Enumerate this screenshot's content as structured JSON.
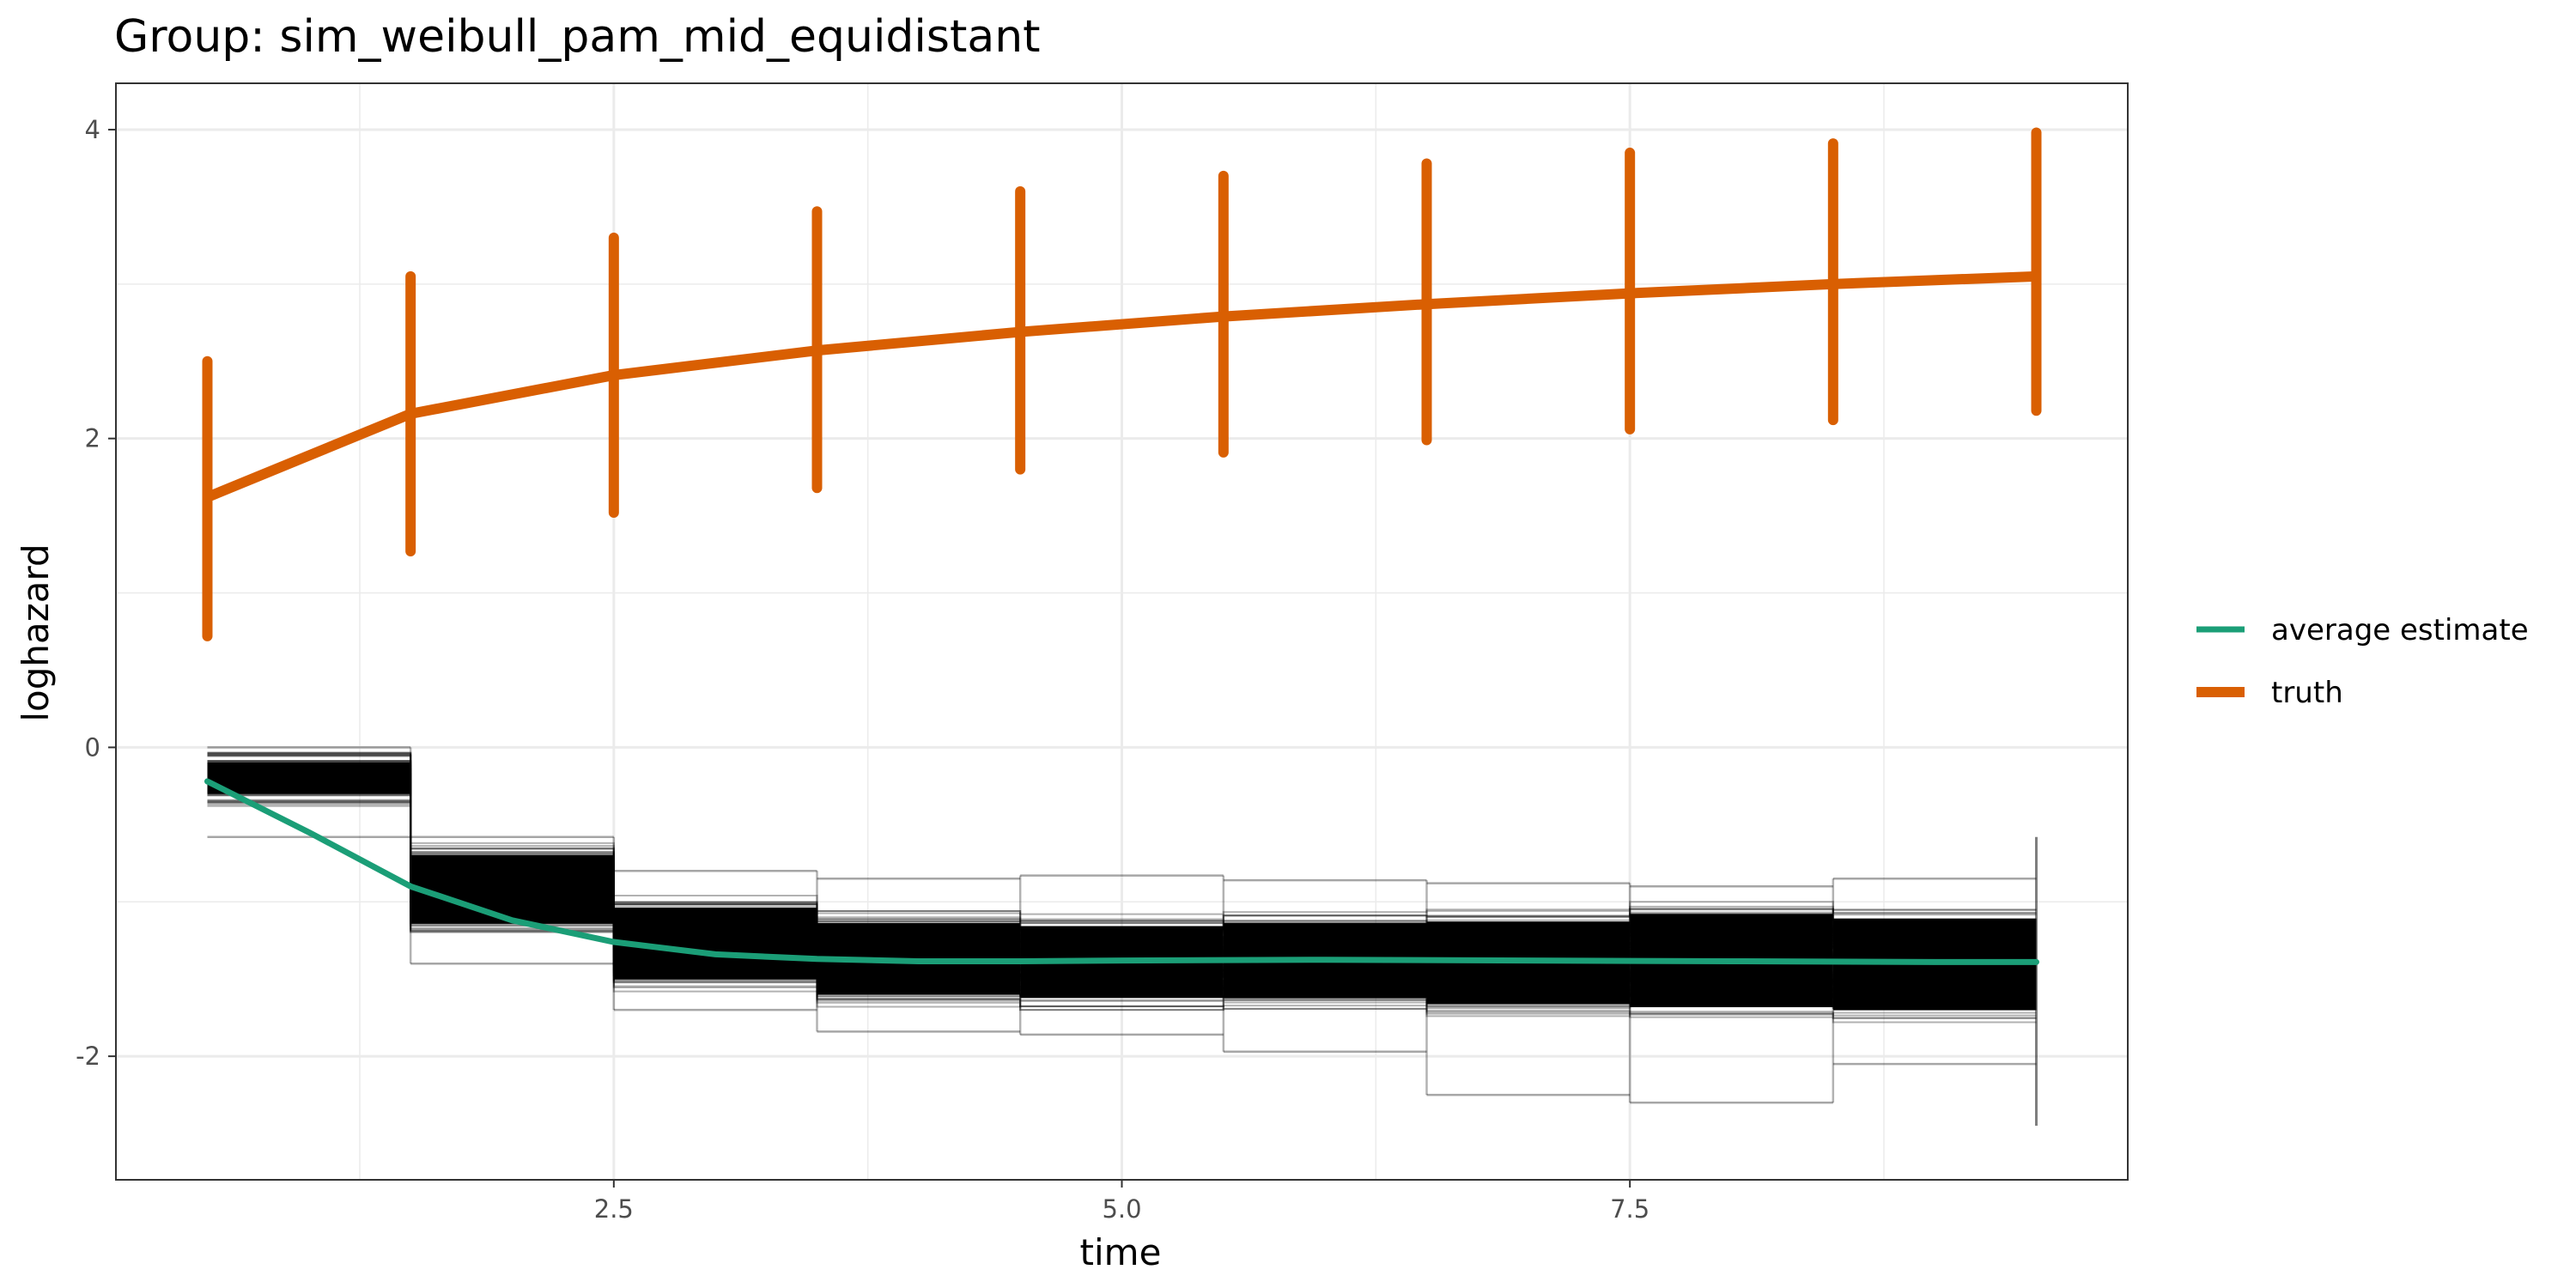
{
  "chart_data": {
    "type": "line",
    "title": "Group: sim_weibull_pam_mid_equidistant",
    "xlabel": "time",
    "ylabel": "loghazard",
    "xlim": [
      0.05,
      9.95
    ],
    "ylim": [
      -2.8,
      4.3
    ],
    "x_ticks": [
      2.5,
      5.0,
      7.5
    ],
    "x_tick_labels": [
      "2.5",
      "5.0",
      "7.5"
    ],
    "y_ticks": [
      -2,
      0,
      2,
      4
    ],
    "y_tick_labels": [
      "-2",
      "0",
      "2",
      "4"
    ],
    "grid": true,
    "legend_position": "right",
    "series": [
      {
        "name": "average estimate",
        "color": "#1b9e77",
        "x": [
          0.5,
          1.0,
          1.5,
          2.0,
          2.5,
          3.0,
          3.5,
          4.0,
          4.5,
          5.0,
          6.0,
          7.0,
          8.0,
          9.0,
          9.5
        ],
        "y": [
          -0.22,
          -0.55,
          -0.9,
          -1.12,
          -1.26,
          -1.34,
          -1.37,
          -1.385,
          -1.385,
          -1.38,
          -1.375,
          -1.38,
          -1.385,
          -1.39,
          -1.39
        ]
      },
      {
        "name": "truth",
        "color": "#d95f02",
        "x": [
          0.5,
          1.5,
          2.5,
          3.5,
          4.5,
          5.5,
          6.5,
          7.5,
          8.5,
          9.5
        ],
        "y": [
          1.62,
          2.16,
          2.41,
          2.57,
          2.69,
          2.79,
          2.87,
          2.94,
          3.0,
          3.05
        ],
        "vertical_ranges": [
          [
            0.72,
            2.5
          ],
          [
            1.27,
            3.05
          ],
          [
            1.52,
            3.3
          ],
          [
            1.68,
            3.47
          ],
          [
            1.8,
            3.6
          ],
          [
            1.91,
            3.7
          ],
          [
            1.99,
            3.78
          ],
          [
            2.06,
            3.85
          ],
          [
            2.12,
            3.91
          ],
          [
            2.18,
            3.98
          ]
        ]
      }
    ],
    "replicate_estimates": {
      "color": "#000000",
      "breaks": [
        0.5,
        1.5,
        2.5,
        3.5,
        4.5,
        5.5,
        6.5,
        7.5,
        8.5,
        9.5
      ],
      "band_low": [
        -0.38,
        -1.22,
        -1.58,
        -1.68,
        -1.7,
        -1.7,
        -1.74,
        -1.76,
        -1.78
      ],
      "band_high": [
        -0.02,
        -0.62,
        -0.96,
        -1.06,
        -1.08,
        -1.06,
        -1.05,
        -1.0,
        -1.03
      ],
      "extreme_low": [
        -0.58,
        -1.4,
        -1.7,
        -1.84,
        -1.86,
        -1.97,
        -2.25,
        -2.3,
        -2.05
      ],
      "extreme_high": [
        0.0,
        -0.58,
        -0.8,
        -0.85,
        -0.83,
        -0.86,
        -0.88,
        -0.9,
        -0.85
      ],
      "final_tick_range": [
        -2.45,
        -0.58
      ]
    }
  }
}
